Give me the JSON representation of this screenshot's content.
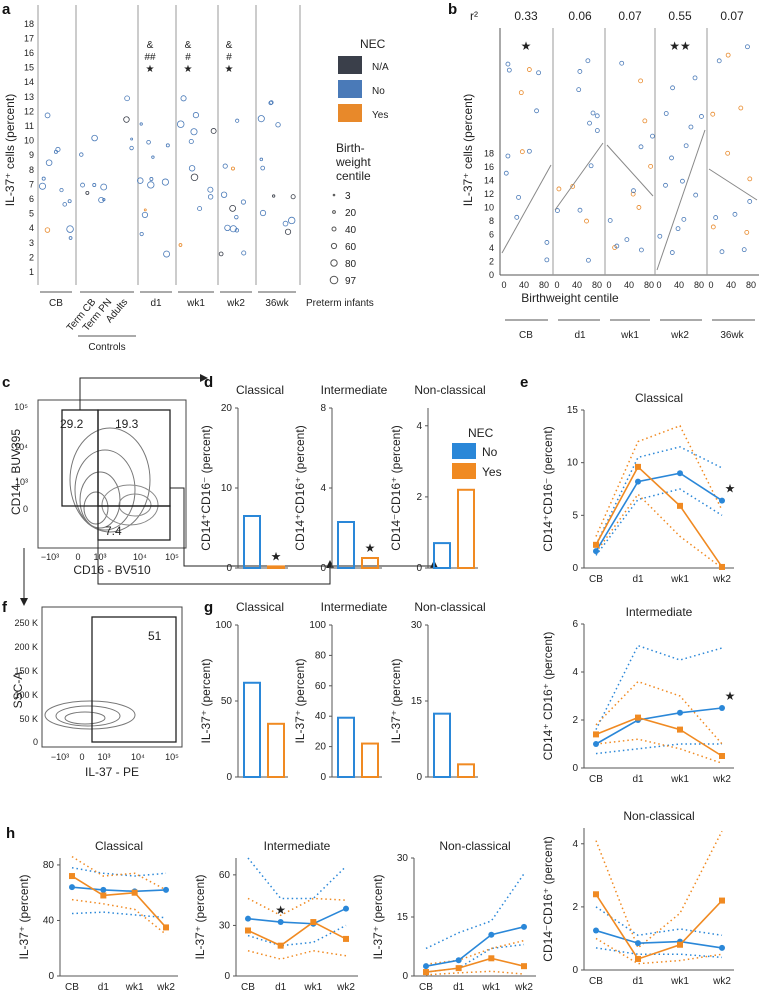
{
  "colors": {
    "no": "#4a7ab8",
    "yes": "#e8892a",
    "na": "#3a3f4a",
    "blue_bright": "#2a87d8",
    "orange_bright": "#f08a22"
  },
  "panels": {
    "a": {
      "label": "a",
      "ylabel": "IL-37⁺ cells (percent)",
      "yticks": [
        "1",
        "2",
        "3",
        "4",
        "5",
        "6",
        "7",
        "8",
        "9",
        "10",
        "11",
        "12",
        "13",
        "14",
        "15",
        "16",
        "17",
        "18"
      ],
      "groups": [
        "CB",
        "Term CB",
        "Term PN",
        "Adults",
        "d1",
        "wk1",
        "wk2",
        "36wk"
      ],
      "controls_label": "Controls",
      "preterm_label": "Preterm infants",
      "sig_d1": [
        "&",
        "##",
        "★"
      ],
      "sig_wk1": [
        "&",
        "#",
        "★"
      ],
      "sig_wk2": [
        "&",
        "#",
        "★"
      ]
    },
    "legend": {
      "title": "NEC",
      "items": [
        {
          "label": "N/A",
          "color": "#3a3f4a"
        },
        {
          "label": "No",
          "color": "#4a7ab8"
        },
        {
          "label": "Yes",
          "color": "#e8892a"
        }
      ],
      "size_title": [
        "Birth-",
        "weight",
        "centile"
      ],
      "sizes": [
        "3",
        "20",
        "40",
        "60",
        "80",
        "97"
      ]
    },
    "b": {
      "label": "b",
      "r2_label": "r²",
      "r2": [
        "0.33",
        "0.06",
        "0.07",
        "0.55",
        "0.07"
      ],
      "groups": [
        "CB",
        "d1",
        "wk1",
        "wk2",
        "36wk"
      ],
      "ylabel": "IL-37⁺ cells (percent)",
      "xlabel": "Birthweight centile",
      "xticks": [
        "0",
        "40",
        "80"
      ],
      "yticks": [
        "0",
        "2",
        "4",
        "6",
        "8",
        "10",
        "12",
        "14",
        "16",
        "18"
      ],
      "stars": [
        "★",
        "",
        "",
        "★★",
        ""
      ]
    },
    "c": {
      "label": "c",
      "ylabel": "CD14 - BUV395",
      "xlabel": "CD16 - BV510",
      "g1": "29.2",
      "g2": "19.3",
      "g3": "7.4"
    },
    "f": {
      "label": "f",
      "ylabel": "SSC-A",
      "xlabel": "IL-37 - PE",
      "gate": "51",
      "yticks": [
        "0",
        "50 K",
        "100 K",
        "150 K",
        "200 K",
        "250 K"
      ]
    },
    "d": {
      "label": "d",
      "titles": [
        "Classical",
        "Intermediate",
        "Non-classical"
      ],
      "ylabels": [
        "CD14⁺CD16⁻ (percent)",
        "CD14⁺CD16⁺ (percent)",
        "CD14⁻CD16⁺ (percent)"
      ],
      "legend_title": "NEC",
      "legend_no": "No",
      "legend_yes": "Yes"
    },
    "g": {
      "label": "g",
      "titles": [
        "Classical",
        "Intermediate",
        "Non-classical"
      ],
      "ylabel": "IL-37⁺ (percent)"
    },
    "e": {
      "label": "e",
      "titles": [
        "Classical",
        "Intermediate",
        "Non-classical"
      ],
      "ylabels": [
        "CD14⁺CD16⁻ (percent)",
        "CD14⁺ CD16⁺ (percent)",
        "CD14⁻CD16⁺ (percent)"
      ],
      "xticks": [
        "CB",
        "d1",
        "wk1",
        "wk2"
      ]
    },
    "h": {
      "label": "h",
      "titles": [
        "Classical",
        "Intermediate",
        "Non-classical"
      ],
      "ylabel": "IL-37⁺ (percent)",
      "xticks": [
        "CB",
        "d1",
        "wk1",
        "wk2"
      ]
    }
  },
  "chart_data": [
    {
      "panel": "d",
      "type": "bar",
      "title": "Classical",
      "categories": [
        "No",
        "Yes"
      ],
      "values": [
        6.5,
        0.2
      ],
      "ylim": [
        0,
        20
      ],
      "yticks": [
        "0",
        "10",
        "20"
      ],
      "star": "★"
    },
    {
      "panel": "d",
      "type": "bar",
      "title": "Intermediate",
      "categories": [
        "No",
        "Yes"
      ],
      "values": [
        2.3,
        0.5
      ],
      "ylim": [
        0,
        8
      ],
      "yticks": [
        "0",
        "4",
        "8"
      ],
      "star": "★"
    },
    {
      "panel": "d",
      "type": "bar",
      "title": "Non-classical",
      "categories": [
        "No",
        "Yes"
      ],
      "values": [
        0.7,
        2.2
      ],
      "ylim": [
        0,
        4.5
      ],
      "yticks": [
        "0",
        "2",
        "4"
      ]
    },
    {
      "panel": "g",
      "type": "bar",
      "title": "Classical",
      "categories": [
        "No",
        "Yes"
      ],
      "values": [
        62,
        35
      ],
      "ylim": [
        0,
        100
      ],
      "yticks": [
        "0",
        "50",
        "100"
      ]
    },
    {
      "panel": "g",
      "type": "bar",
      "title": "Intermediate",
      "categories": [
        "No",
        "Yes"
      ],
      "values": [
        39,
        22
      ],
      "ylim": [
        0,
        100
      ],
      "yticks": [
        "0",
        "20",
        "40",
        "60",
        "80",
        "100"
      ]
    },
    {
      "panel": "g",
      "type": "bar",
      "title": "Non-classical",
      "categories": [
        "No",
        "Yes"
      ],
      "values": [
        12.5,
        2.5
      ],
      "ylim": [
        0,
        30
      ],
      "yticks": [
        "0",
        "15",
        "30"
      ]
    },
    {
      "panel": "e",
      "type": "line",
      "title": "Classical",
      "x": [
        "CB",
        "d1",
        "wk1",
        "wk2"
      ],
      "ylim": [
        0,
        15
      ],
      "yticks": [
        "0",
        "5",
        "10",
        "15"
      ],
      "series": [
        {
          "name": "No",
          "values": [
            1.6,
            8.2,
            9.0,
            6.4
          ]
        },
        {
          "name": "Yes",
          "values": [
            2.2,
            9.6,
            5.9,
            0.1
          ]
        }
      ],
      "bounds_no": [
        [
          1.2,
          6.5,
          7.5,
          5.0
        ],
        [
          2.2,
          10.5,
          11.5,
          9.5
        ]
      ],
      "bounds_yes": [
        [
          1.5,
          7.0,
          3.0,
          0.0
        ],
        [
          3.0,
          12.0,
          13.5,
          5.5
        ]
      ],
      "star_at": 3
    },
    {
      "panel": "e",
      "type": "line",
      "title": "Intermediate",
      "x": [
        "CB",
        "d1",
        "wk1",
        "wk2"
      ],
      "ylim": [
        0,
        6
      ],
      "yticks": [
        "0",
        "2",
        "4",
        "6"
      ],
      "series": [
        {
          "name": "No",
          "values": [
            1.0,
            2.0,
            2.3,
            2.5
          ]
        },
        {
          "name": "Yes",
          "values": [
            1.4,
            2.1,
            1.6,
            0.5
          ]
        }
      ],
      "bounds_no": [
        [
          0.6,
          0.8,
          1.0,
          1.0
        ],
        [
          1.6,
          5.1,
          4.5,
          5.0
        ]
      ],
      "bounds_yes": [
        [
          1.0,
          1.2,
          0.8,
          0.2
        ],
        [
          1.8,
          3.6,
          3.0,
          1.0
        ]
      ],
      "star_at": 3
    },
    {
      "panel": "e",
      "type": "line",
      "title": "Non-classical",
      "x": [
        "CB",
        "d1",
        "wk1",
        "wk2"
      ],
      "ylim": [
        0,
        4.5
      ],
      "yticks": [
        "0",
        "2",
        "4"
      ],
      "series": [
        {
          "name": "No",
          "values": [
            1.25,
            0.85,
            0.9,
            0.7
          ]
        },
        {
          "name": "Yes",
          "values": [
            2.4,
            0.35,
            0.8,
            2.2
          ]
        }
      ],
      "bounds_no": [
        [
          0.7,
          0.5,
          0.5,
          0.4
        ],
        [
          2.0,
          1.1,
          1.3,
          1.1
        ]
      ],
      "bounds_yes": [
        [
          1.0,
          0.2,
          0.3,
          0.5
        ],
        [
          4.1,
          0.7,
          1.8,
          4.4
        ]
      ]
    },
    {
      "panel": "h",
      "type": "line",
      "title": "Classical",
      "x": [
        "CB",
        "d1",
        "wk1",
        "wk2"
      ],
      "ylim": [
        0,
        85
      ],
      "yticks": [
        "0",
        "40",
        "80"
      ],
      "series": [
        {
          "name": "No",
          "values": [
            64,
            62,
            61,
            62
          ]
        },
        {
          "name": "Yes",
          "values": [
            72,
            58,
            60,
            35
          ]
        }
      ],
      "bounds_no": [
        [
          45,
          46,
          44,
          42
        ],
        [
          78,
          74,
          72,
          74
        ]
      ],
      "bounds_yes": [
        [
          55,
          52,
          48,
          30
        ],
        [
          86,
          72,
          74,
          62
        ]
      ]
    },
    {
      "panel": "h",
      "type": "line",
      "title": "Intermediate",
      "x": [
        "CB",
        "d1",
        "wk1",
        "wk2"
      ],
      "ylim": [
        0,
        70
      ],
      "yticks": [
        "0",
        "30",
        "60"
      ],
      "series": [
        {
          "name": "No",
          "values": [
            34,
            32,
            31,
            40
          ]
        },
        {
          "name": "Yes",
          "values": [
            27,
            18,
            32,
            22
          ]
        }
      ],
      "bounds_no": [
        [
          24,
          18,
          20,
          30
        ],
        [
          70,
          46,
          46,
          65
        ]
      ],
      "bounds_yes": [
        [
          15,
          10,
          15,
          12
        ],
        [
          46,
          36,
          46,
          45
        ]
      ],
      "star_at": 1
    },
    {
      "panel": "h",
      "type": "line",
      "title": "Non-classical",
      "x": [
        "CB",
        "d1",
        "wk1",
        "wk2"
      ],
      "ylim": [
        0,
        30
      ],
      "yticks": [
        "0",
        "15",
        "30"
      ],
      "series": [
        {
          "name": "No",
          "values": [
            2.5,
            4,
            10.5,
            12.5
          ]
        },
        {
          "name": "Yes",
          "values": [
            1,
            2,
            4.5,
            2.5
          ]
        }
      ],
      "bounds_no": [
        [
          1,
          2,
          7,
          8
        ],
        [
          7,
          11,
          14,
          26
        ]
      ],
      "bounds_yes": [
        [
          0.3,
          0.8,
          1.2,
          0.5
        ],
        [
          3,
          4,
          7,
          9
        ]
      ]
    }
  ]
}
